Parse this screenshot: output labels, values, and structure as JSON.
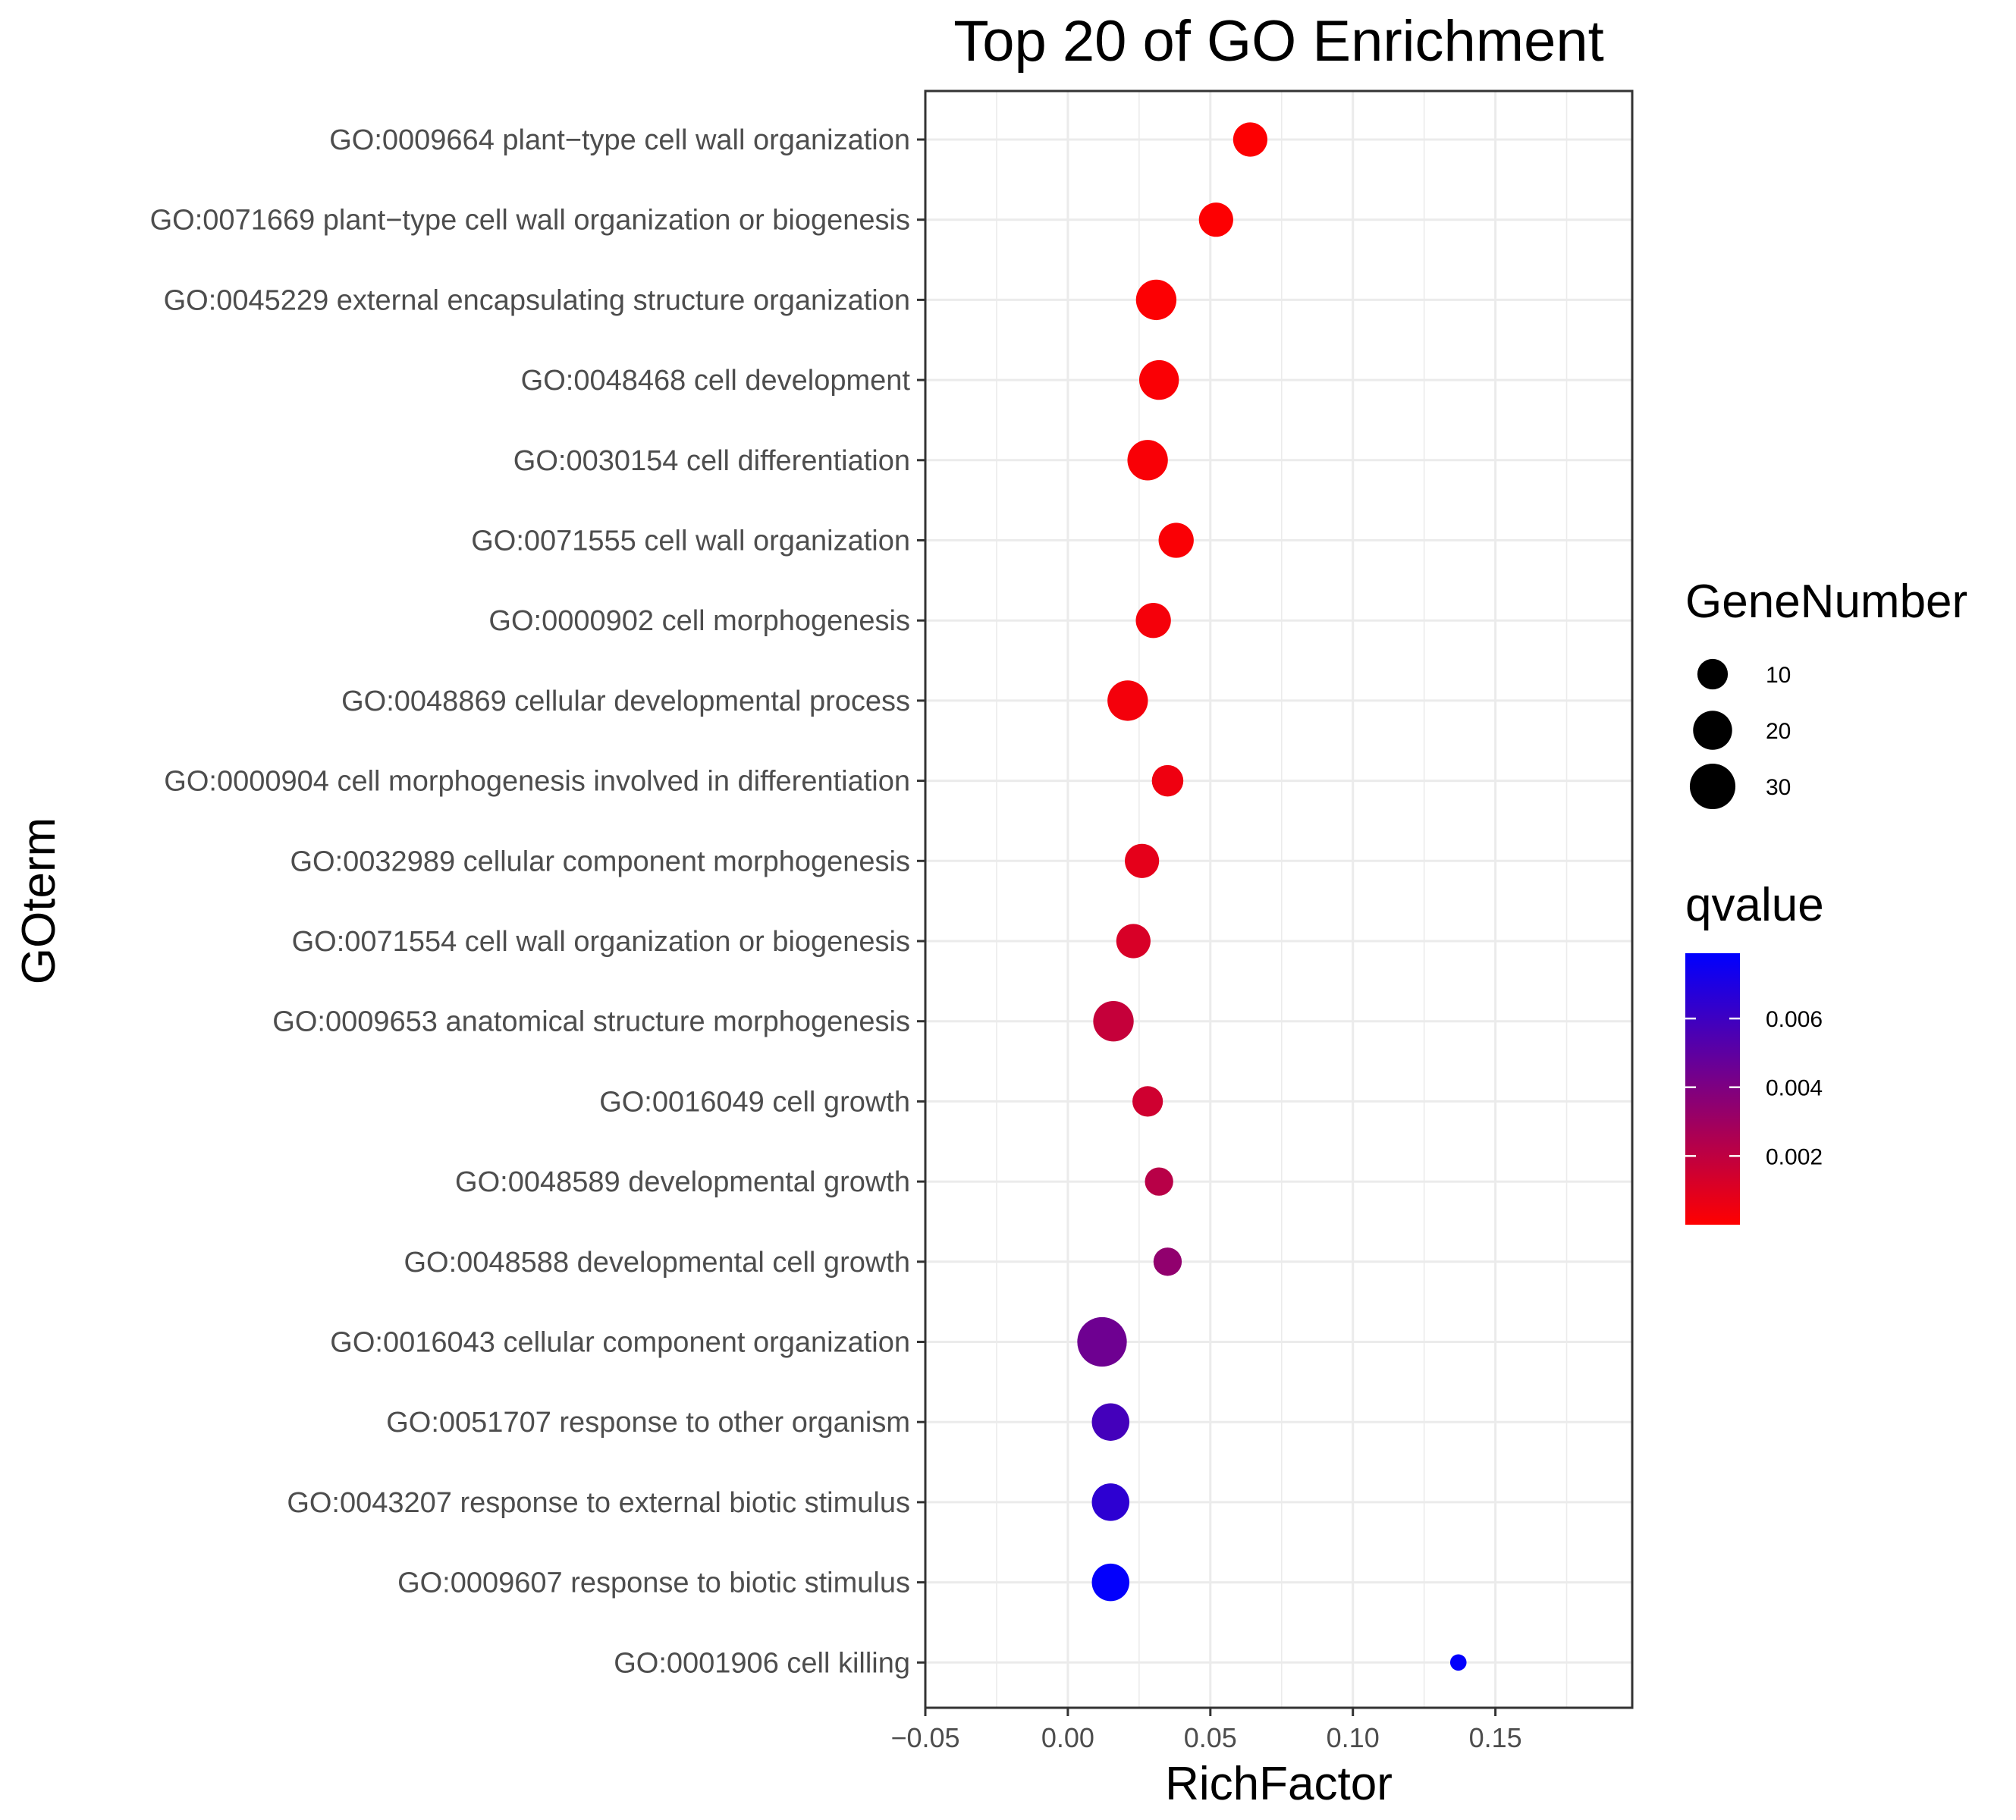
{
  "chart_data": {
    "type": "scatter",
    "title": "Top 20 of GO Enrichment",
    "xlabel": "RichFactor",
    "ylabel": "GOterm",
    "xlim": [
      -0.05,
      0.198
    ],
    "x_ticks": [
      -0.05,
      0.0,
      0.05,
      0.1,
      0.15
    ],
    "x_tick_labels": [
      "−0.05",
      "0.00",
      "0.05",
      "0.10",
      "0.15"
    ],
    "grid": true,
    "legend_position": "right",
    "points": [
      {
        "term": "GO:0009664 plant−type cell wall organization",
        "rich_factor": 0.064,
        "gene_number": 14,
        "qvalue": 5e-05
      },
      {
        "term": "GO:0071669 plant−type cell wall organization or biogenesis",
        "rich_factor": 0.052,
        "gene_number": 14,
        "qvalue": 5e-05
      },
      {
        "term": "GO:0045229 external encapsulating structure organization",
        "rich_factor": 0.031,
        "gene_number": 22,
        "qvalue": 0.0001
      },
      {
        "term": "GO:0048468 cell development",
        "rich_factor": 0.032,
        "gene_number": 21,
        "qvalue": 0.00015
      },
      {
        "term": "GO:0030154 cell differentiation",
        "rich_factor": 0.028,
        "gene_number": 22,
        "qvalue": 0.0002
      },
      {
        "term": "GO:0071555 cell wall organization",
        "rich_factor": 0.038,
        "gene_number": 15,
        "qvalue": 0.00015
      },
      {
        "term": "GO:0000902 cell morphogenesis",
        "rich_factor": 0.03,
        "gene_number": 15,
        "qvalue": 0.0003
      },
      {
        "term": "GO:0048869 cellular developmental process",
        "rich_factor": 0.021,
        "gene_number": 22,
        "qvalue": 0.00035
      },
      {
        "term": "GO:0000904 cell morphogenesis involved in differentiation",
        "rich_factor": 0.035,
        "gene_number": 11,
        "qvalue": 0.0005
      },
      {
        "term": "GO:0032989 cellular component morphogenesis",
        "rich_factor": 0.026,
        "gene_number": 14,
        "qvalue": 0.0008
      },
      {
        "term": "GO:0071554 cell wall organization or biogenesis",
        "rich_factor": 0.023,
        "gene_number": 14,
        "qvalue": 0.0012
      },
      {
        "term": "GO:0009653 anatomical structure morphogenesis",
        "rich_factor": 0.016,
        "gene_number": 22,
        "qvalue": 0.0018
      },
      {
        "term": "GO:0016049 cell growth",
        "rich_factor": 0.028,
        "gene_number": 10,
        "qvalue": 0.0015
      },
      {
        "term": "GO:0048589 developmental growth",
        "rich_factor": 0.032,
        "gene_number": 8,
        "qvalue": 0.0022
      },
      {
        "term": "GO:0048588 developmental cell growth",
        "rich_factor": 0.035,
        "gene_number": 8,
        "qvalue": 0.0034
      },
      {
        "term": "GO:0016043 cellular component organization",
        "rich_factor": 0.012,
        "gene_number": 37,
        "qvalue": 0.0045
      },
      {
        "term": "GO:0051707 response to other organism",
        "rich_factor": 0.015,
        "gene_number": 18,
        "qvalue": 0.0058
      },
      {
        "term": "GO:0043207 response to external biotic stimulus",
        "rich_factor": 0.015,
        "gene_number": 18,
        "qvalue": 0.0065
      },
      {
        "term": "GO:0009607 response to biotic stimulus",
        "rich_factor": 0.015,
        "gene_number": 18,
        "qvalue": 0.0078
      },
      {
        "term": "GO:0001906 cell killing",
        "rich_factor": 0.137,
        "gene_number": 1,
        "qvalue": 0.0078
      }
    ],
    "legend_size": {
      "title": "GeneNumber",
      "values": [
        10,
        20,
        30
      ],
      "labels": [
        "10",
        "20",
        "30"
      ]
    },
    "legend_color": {
      "title": "qvalue",
      "low_color": "#ff0000",
      "high_color": "#0000ff",
      "range": [
        0.0,
        0.0079
      ],
      "ticks": [
        0.002,
        0.004,
        0.006
      ],
      "tick_labels": [
        "0.002",
        "0.004",
        "0.006"
      ]
    }
  }
}
